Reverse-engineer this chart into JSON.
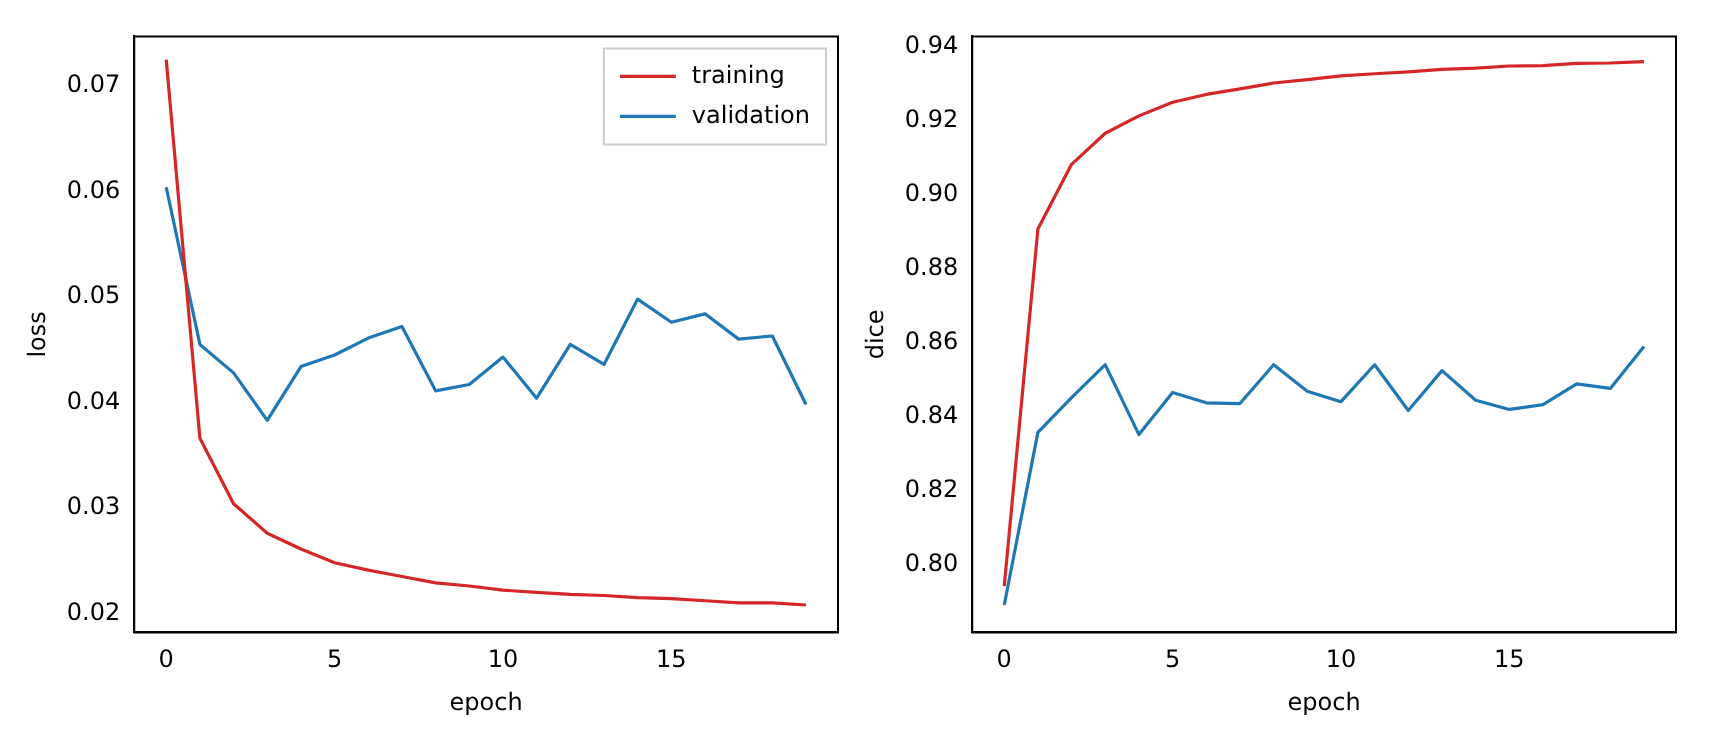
{
  "chart_data": [
    {
      "type": "line",
      "xlabel": "epoch",
      "ylabel": "loss",
      "x": [
        0,
        1,
        2,
        3,
        4,
        5,
        6,
        7,
        8,
        9,
        10,
        11,
        12,
        13,
        14,
        15,
        16,
        17,
        18,
        19
      ],
      "xlim": [
        -0.95,
        19.95
      ],
      "ylim": [
        0.0182,
        0.0747
      ],
      "xticks": [
        0,
        5,
        10,
        15
      ],
      "yticks": [
        0.02,
        0.03,
        0.04,
        0.05,
        0.06,
        0.07
      ],
      "legend": "top right",
      "grid": false,
      "series": [
        {
          "name": "training",
          "color": "#d62728",
          "values": [
            0.0725,
            0.0366,
            0.0304,
            0.0276,
            0.0261,
            0.0248,
            0.0241,
            0.0235,
            0.0229,
            0.0226,
            0.0222,
            0.022,
            0.0218,
            0.0217,
            0.0215,
            0.0214,
            0.0212,
            0.021,
            0.021,
            0.0208
          ]
        },
        {
          "name": "validation",
          "color": "#1f77b4",
          "values": [
            0.0604,
            0.0455,
            0.0428,
            0.0383,
            0.0434,
            0.0445,
            0.0461,
            0.0472,
            0.0411,
            0.0417,
            0.0443,
            0.0404,
            0.0455,
            0.0436,
            0.0498,
            0.0476,
            0.0484,
            0.046,
            0.0463,
            0.0398
          ]
        }
      ]
    },
    {
      "type": "line",
      "xlabel": "epoch",
      "ylabel": "dice",
      "x": [
        0,
        1,
        2,
        3,
        4,
        5,
        6,
        7,
        8,
        9,
        10,
        11,
        12,
        13,
        14,
        15,
        16,
        17,
        18,
        19
      ],
      "xlim": [
        -0.95,
        19.95
      ],
      "ylim": [
        0.7816,
        0.9428
      ],
      "xticks": [
        0,
        5,
        10,
        15
      ],
      "yticks": [
        {
          "value": 0.8,
          "label": "0.80"
        },
        {
          "value": 0.82,
          "label": "0.82"
        },
        {
          "value": 0.84,
          "label": "0.84"
        },
        {
          "value": 0.86,
          "label": "0.86"
        },
        {
          "value": 0.88,
          "label": "0.88"
        },
        {
          "value": 0.9,
          "label": "0.90"
        },
        {
          "value": 0.92,
          "label": "0.92"
        },
        {
          "value": 0.94,
          "label": "0.94"
        }
      ],
      "grid": false,
      "series": [
        {
          "color": "#d62728",
          "values": [
            0.7941,
            0.8907,
            0.9082,
            0.9166,
            0.9213,
            0.925,
            0.9271,
            0.9286,
            0.9302,
            0.9311,
            0.9321,
            0.9327,
            0.9332,
            0.9339,
            0.9342,
            0.9348,
            0.9349,
            0.9355,
            0.9356,
            0.936
          ]
        },
        {
          "color": "#1f77b4",
          "values": [
            0.789,
            0.8357,
            0.8451,
            0.854,
            0.8351,
            0.8465,
            0.8437,
            0.8435,
            0.854,
            0.8468,
            0.844,
            0.854,
            0.8416,
            0.8524,
            0.8444,
            0.8419,
            0.8432,
            0.8488,
            0.8476,
            0.8589
          ]
        }
      ]
    }
  ]
}
